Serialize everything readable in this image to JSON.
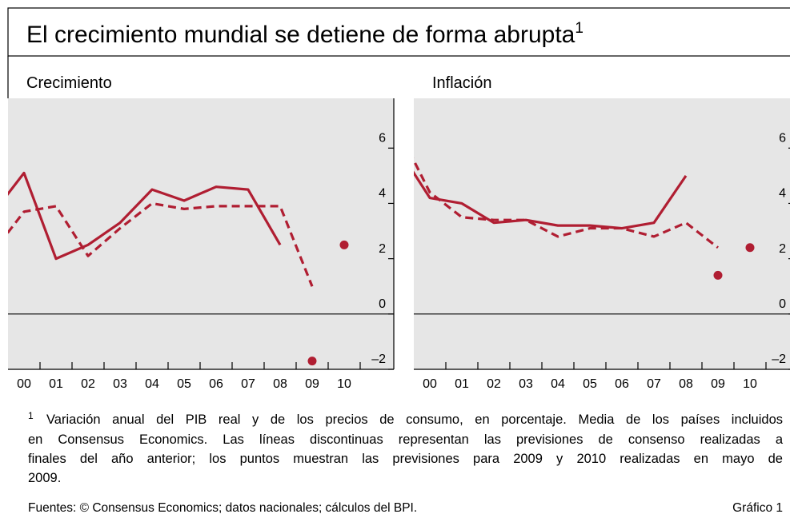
{
  "header": {
    "title": "El crecimiento mundial se detiene de forma abrupta",
    "title_note": "1"
  },
  "chart_data": [
    {
      "type": "line",
      "title": "Crecimiento",
      "categories": [
        null,
        "00",
        "01",
        "02",
        "03",
        "04",
        "05",
        "06",
        "07",
        "08",
        "09",
        "10"
      ],
      "ylim": [
        -2,
        7.8
      ],
      "yticks": [
        {
          "value": -2,
          "label": "–2"
        },
        0,
        2,
        4,
        6
      ],
      "series": [
        {
          "style": "solid",
          "color": "#b01e32",
          "values": [
            3.6,
            5.1,
            2.0,
            2.5,
            3.3,
            4.5,
            4.1,
            4.6,
            4.5,
            2.5,
            null,
            null
          ]
        },
        {
          "style": "dashed",
          "color": "#b01e32",
          "values": [
            2.2,
            3.7,
            3.9,
            2.1,
            3.1,
            4.0,
            3.8,
            3.9,
            3.9,
            3.9,
            1.0,
            null
          ]
        },
        {
          "style": "points",
          "color": "#b01e32",
          "values": [
            null,
            null,
            null,
            null,
            null,
            null,
            null,
            null,
            null,
            null,
            -1.7,
            2.5
          ]
        }
      ]
    },
    {
      "type": "line",
      "title": "Inflación",
      "categories": [
        null,
        "00",
        "01",
        "02",
        "03",
        "04",
        "05",
        "06",
        "07",
        "08",
        "09",
        "10"
      ],
      "ylim": [
        -2,
        7.8
      ],
      "yticks": [
        {
          "value": -2,
          "label": "–2"
        },
        0,
        2,
        4,
        6
      ],
      "series": [
        {
          "style": "solid",
          "color": "#b01e32",
          "values": [
            6.0,
            4.2,
            4.0,
            3.3,
            3.4,
            3.2,
            3.2,
            3.1,
            3.3,
            5.0,
            null,
            null
          ]
        },
        {
          "style": "dashed",
          "color": "#b01e32",
          "values": [
            6.7,
            4.4,
            3.5,
            3.4,
            3.4,
            2.8,
            3.1,
            3.1,
            2.8,
            3.3,
            2.4,
            null
          ]
        },
        {
          "style": "points",
          "color": "#b01e32",
          "values": [
            null,
            null,
            null,
            null,
            null,
            null,
            null,
            null,
            null,
            null,
            1.4,
            2.4
          ]
        }
      ]
    }
  ],
  "footnote": {
    "marker": "1",
    "lines": [
      "Variación anual del PIB real y de los precios de consumo, en porcentaje. Media de los países incluidos",
      "en Consensus Economics. Las líneas discontinuas representan las previsiones de consenso realizadas a",
      "finales del año anterior; los puntos muestran las previsiones para 2009 y 2010 realizadas en mayo de",
      "2009."
    ]
  },
  "sources": "Fuentes: © Consensus Economics; datos nacionales; cálculos del BPI.",
  "figure_label": "Gráfico 1"
}
